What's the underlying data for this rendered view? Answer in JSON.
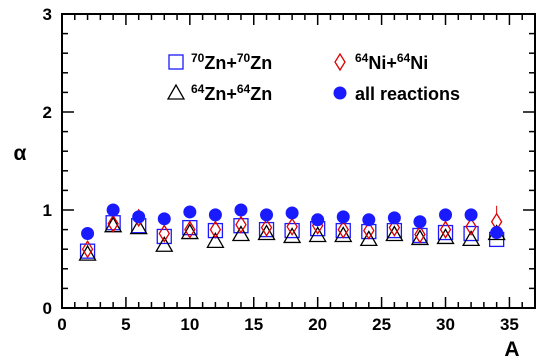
{
  "chart_data": {
    "type": "scatter",
    "title": "",
    "xlabel": "A",
    "ylabel": "α",
    "xlim": [
      0,
      37
    ],
    "ylim": [
      0,
      3
    ],
    "x_ticks": [
      "0",
      "5",
      "10",
      "15",
      "20",
      "25",
      "30",
      "35"
    ],
    "y_ticks": [
      "0",
      "1",
      "2",
      "3"
    ],
    "grid": false,
    "legend_position": "top",
    "series": [
      {
        "name": "70Zn+70Zn",
        "legend": {
          "sup1": "70",
          "t1": "Zn+",
          "sup2": "70",
          "t2": "Zn"
        },
        "marker": "open-square",
        "color": "#1a1aff",
        "x": [
          2,
          4,
          6,
          8,
          10,
          12,
          14,
          16,
          18,
          20,
          22,
          24,
          26,
          28,
          30,
          32,
          34
        ],
        "y": [
          0.58,
          0.87,
          0.84,
          0.73,
          0.82,
          0.79,
          0.84,
          0.8,
          0.79,
          0.81,
          0.79,
          0.78,
          0.79,
          0.74,
          0.77,
          0.76,
          0.7
        ]
      },
      {
        "name": "64Zn+64Zn",
        "legend": {
          "sup1": "64",
          "t1": "Zn+",
          "sup2": "64",
          "t2": "Zn"
        },
        "marker": "open-triangle",
        "color": "#000000",
        "x": [
          2,
          4,
          6,
          8,
          10,
          12,
          14,
          16,
          18,
          20,
          22,
          24,
          26,
          28,
          30,
          32,
          34
        ],
        "y": [
          0.55,
          0.84,
          0.82,
          0.64,
          0.77,
          0.68,
          0.75,
          0.76,
          0.73,
          0.74,
          0.74,
          0.7,
          0.75,
          0.71,
          0.72,
          0.7,
          0.76
        ]
      },
      {
        "name": "64Ni+64Ni",
        "legend": {
          "sup1": "64",
          "t1": "Ni+",
          "sup2": "64",
          "t2": "Ni"
        },
        "marker": "open-diamond",
        "color": "#e00000",
        "x": [
          2,
          4,
          6,
          8,
          10,
          12,
          14,
          16,
          18,
          20,
          22,
          24,
          26,
          28,
          30,
          32,
          34
        ],
        "y": [
          0.6,
          0.86,
          0.92,
          0.76,
          0.8,
          0.8,
          0.85,
          0.82,
          0.83,
          0.84,
          0.8,
          0.79,
          0.82,
          0.75,
          0.8,
          0.83,
          0.88
        ]
      },
      {
        "name": "all reactions",
        "legend": {
          "sup1": "",
          "t1": "all reactions",
          "sup2": "",
          "t2": ""
        },
        "marker": "filled-circle",
        "color": "#1a1aff",
        "x": [
          2,
          4,
          6,
          8,
          10,
          12,
          14,
          16,
          18,
          20,
          22,
          24,
          26,
          28,
          30,
          32,
          34
        ],
        "y": [
          0.76,
          1.0,
          0.93,
          0.91,
          0.98,
          0.95,
          1.0,
          0.95,
          0.97,
          0.9,
          0.93,
          0.9,
          0.92,
          0.88,
          0.95,
          0.95,
          0.77
        ]
      }
    ]
  }
}
